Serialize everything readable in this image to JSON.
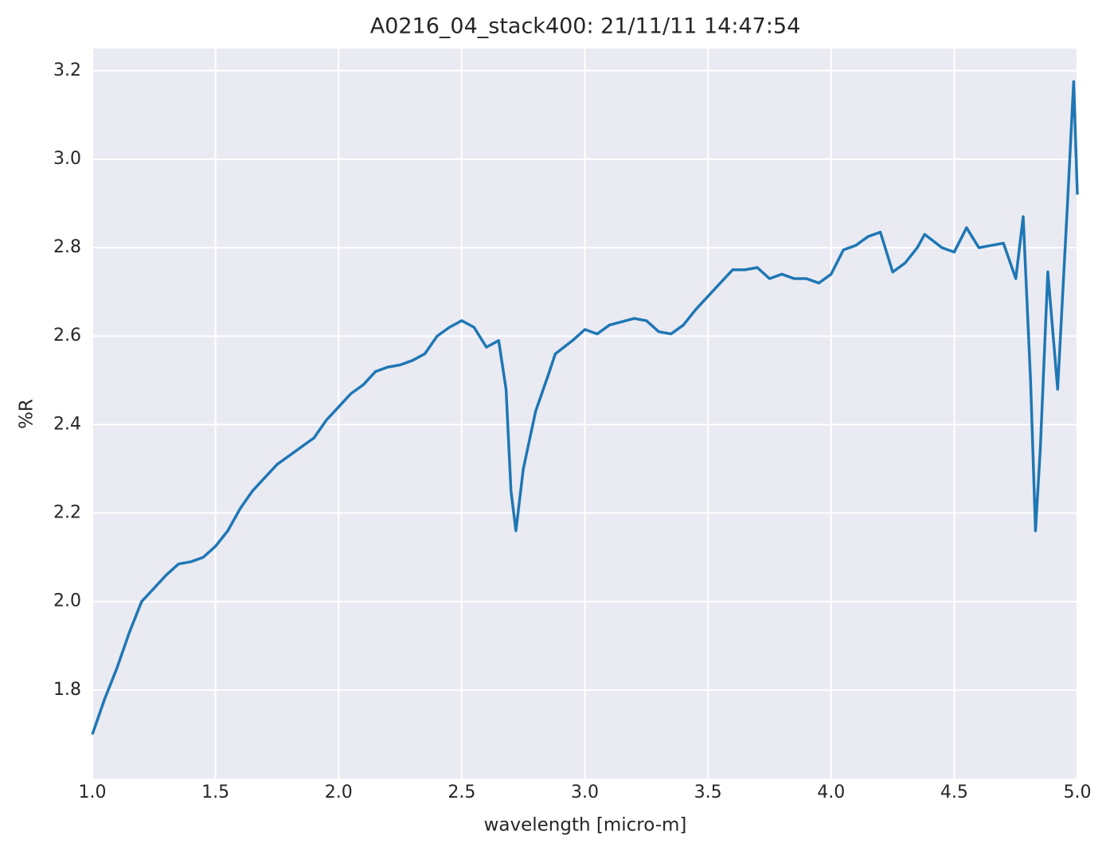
{
  "chart_data": {
    "type": "line",
    "title": "A0216_04_stack400:  21/11/11 14:47:54",
    "xlabel": "wavelength [micro-m]",
    "ylabel": "%R",
    "xlim": [
      1.0,
      5.0
    ],
    "ylim": [
      1.6,
      3.25
    ],
    "xticks": [
      {
        "value": 1.0,
        "label": "1.0"
      },
      1.5,
      {
        "value": 2.0,
        "label": "2.0"
      },
      2.5,
      {
        "value": 3.0,
        "label": "3.0"
      },
      3.5,
      {
        "value": 4.0,
        "label": "4.0"
      },
      4.5,
      {
        "value": 5.0,
        "label": "5.0"
      }
    ],
    "yticks": [
      1.8,
      {
        "value": 2.0,
        "label": "2.0"
      },
      2.2,
      2.4,
      2.6,
      2.8,
      {
        "value": 3.0,
        "label": "3.0"
      },
      3.2
    ],
    "grid": true,
    "x": [
      1.0,
      1.05,
      1.1,
      1.15,
      1.2,
      1.25,
      1.3,
      1.35,
      1.4,
      1.45,
      1.5,
      1.55,
      1.6,
      1.65,
      1.7,
      1.75,
      1.8,
      1.85,
      1.9,
      1.95,
      2.0,
      2.05,
      2.1,
      2.15,
      2.2,
      2.25,
      2.3,
      2.35,
      2.4,
      2.45,
      2.5,
      2.55,
      2.6,
      2.65,
      2.68,
      2.7,
      2.72,
      2.75,
      2.8,
      2.85,
      2.88,
      2.95,
      3.0,
      3.05,
      3.1,
      3.2,
      3.25,
      3.3,
      3.35,
      3.4,
      3.45,
      3.5,
      3.55,
      3.6,
      3.65,
      3.7,
      3.75,
      3.8,
      3.85,
      3.9,
      3.95,
      4.0,
      4.05,
      4.1,
      4.15,
      4.2,
      4.25,
      4.3,
      4.35,
      4.38,
      4.45,
      4.5,
      4.55,
      4.6,
      4.65,
      4.7,
      4.75,
      4.78,
      4.81,
      4.83,
      4.85,
      4.88,
      4.92,
      4.96,
      4.985,
      5.0
    ],
    "series": [
      {
        "color": "#1f77b4",
        "values": [
          1.7,
          1.78,
          1.85,
          1.93,
          2.0,
          2.03,
          2.06,
          2.085,
          2.09,
          2.1,
          2.125,
          2.16,
          2.21,
          2.25,
          2.28,
          2.31,
          2.33,
          2.35,
          2.37,
          2.41,
          2.44,
          2.47,
          2.49,
          2.52,
          2.53,
          2.535,
          2.545,
          2.56,
          2.6,
          2.62,
          2.635,
          2.62,
          2.575,
          2.59,
          2.48,
          2.25,
          2.16,
          2.3,
          2.43,
          2.51,
          2.56,
          2.59,
          2.615,
          2.605,
          2.625,
          2.64,
          2.635,
          2.61,
          2.605,
          2.625,
          2.66,
          2.69,
          2.72,
          2.75,
          2.75,
          2.755,
          2.73,
          2.74,
          2.73,
          2.73,
          2.72,
          2.74,
          2.795,
          2.805,
          2.825,
          2.835,
          2.745,
          2.765,
          2.8,
          2.83,
          2.8,
          2.79,
          2.845,
          2.8,
          2.805,
          2.81,
          2.73,
          2.87,
          2.5,
          2.16,
          2.35,
          2.745,
          2.48,
          2.9,
          3.175,
          2.92
        ]
      }
    ]
  }
}
